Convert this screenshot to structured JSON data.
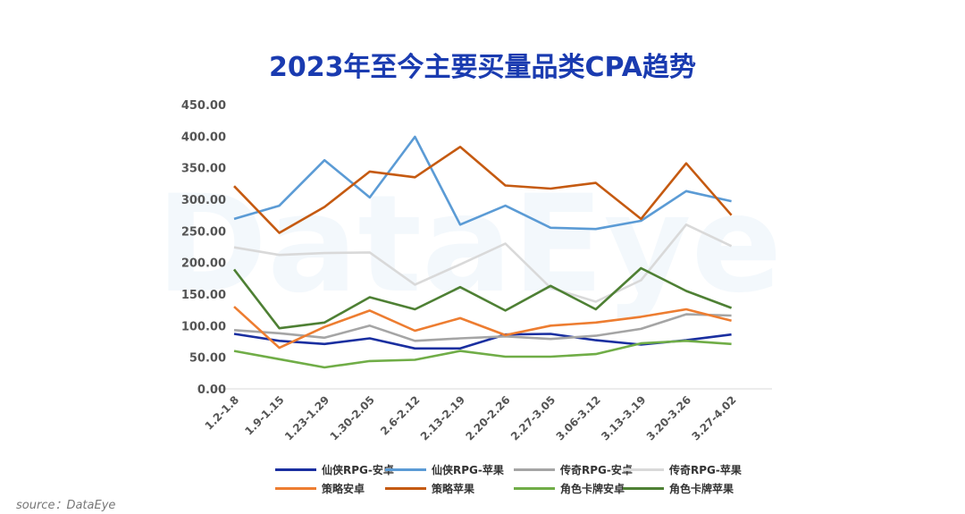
{
  "title": "2023年至今主要买量品类CPA趋势",
  "source": "source：DataEye",
  "watermark": "DataEye",
  "chart_data": {
    "type": "line",
    "categories": [
      "1.2-1.8",
      "1.9-1.15",
      "1.23-1.29",
      "1.30-2.05",
      "2.6-2.12",
      "2.13-2.19",
      "2.20-2.26",
      "2.27-3.05",
      "3.06-3.12",
      "3.13-3.19",
      "3.20-3.26",
      "3.27-4.02"
    ],
    "ylim": [
      0,
      450
    ],
    "yticks": [
      "0.00",
      "50.00",
      "100.00",
      "150.00",
      "200.00",
      "250.00",
      "300.00",
      "350.00",
      "400.00",
      "450.00"
    ],
    "grid": false,
    "legend_position": "bottom",
    "series": [
      {
        "name": "仙侠RPG-安卓",
        "color": "#1a2fa0",
        "values": [
          87,
          76,
          71,
          80,
          64,
          64,
          86,
          87,
          77,
          70,
          77,
          86
        ]
      },
      {
        "name": "仙侠RPG-苹果",
        "color": "#5b9bd5",
        "values": [
          269,
          290,
          362,
          303,
          399,
          260,
          290,
          255,
          253,
          266,
          313,
          297
        ]
      },
      {
        "name": "传奇RPG-安卓",
        "color": "#a5a5a5",
        "values": [
          93,
          88,
          81,
          100,
          76,
          80,
          83,
          79,
          84,
          95,
          118,
          116
        ]
      },
      {
        "name": "传奇RPG-苹果",
        "color": "#d9d9d9",
        "values": [
          224,
          212,
          215,
          216,
          165,
          197,
          230,
          160,
          138,
          172,
          260,
          226
        ]
      },
      {
        "name": "策略安卓",
        "color": "#ed7d31",
        "values": [
          130,
          65,
          98,
          124,
          92,
          112,
          85,
          100,
          105,
          114,
          126,
          108
        ]
      },
      {
        "name": "策略苹果",
        "color": "#c55a11",
        "values": [
          321,
          247,
          288,
          344,
          335,
          383,
          322,
          317,
          326,
          269,
          357,
          275
        ]
      },
      {
        "name": "角色卡牌安卓",
        "color": "#70ad47",
        "values": [
          60,
          47,
          34,
          44,
          46,
          60,
          51,
          51,
          55,
          72,
          76,
          71
        ]
      },
      {
        "name": "角色卡牌苹果",
        "color": "#4e8034",
        "values": [
          189,
          96,
          105,
          145,
          126,
          161,
          124,
          163,
          126,
          191,
          155,
          128
        ]
      }
    ]
  }
}
